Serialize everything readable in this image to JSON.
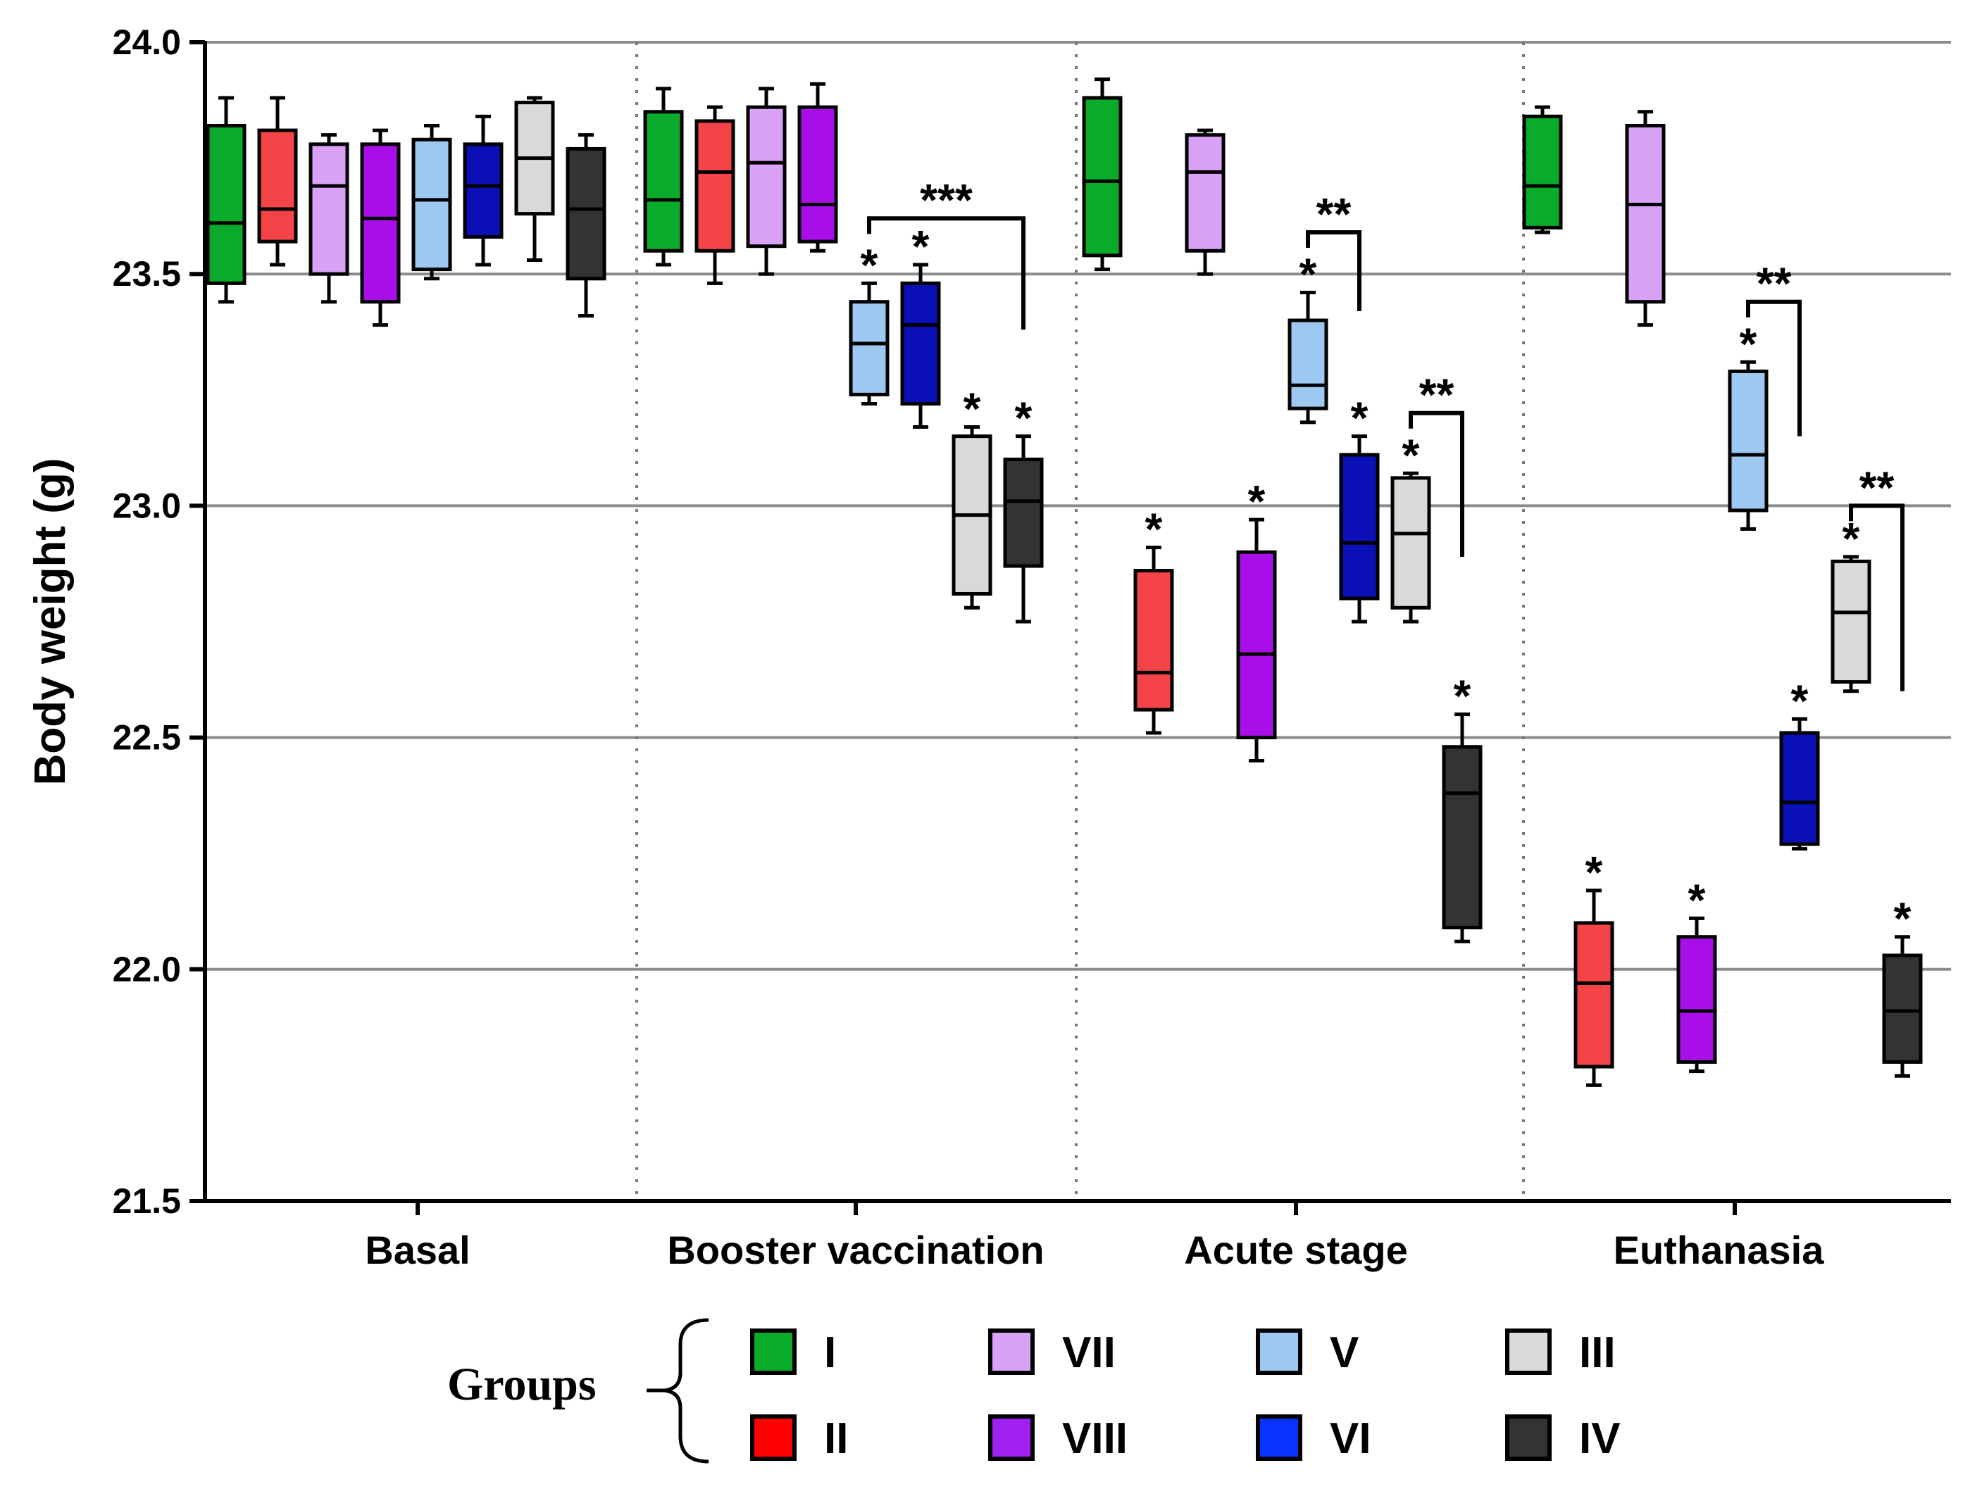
{
  "chart_data": {
    "type": "box",
    "ylabel": "Body weight (g)",
    "xlabel": "",
    "ylim": [
      21.5,
      24.0
    ],
    "yticks": [
      "24.0",
      "23.5",
      "23.0",
      "22.5",
      "22.0",
      "21.5"
    ],
    "grid": true,
    "categories": [
      "Basal",
      "Booster vaccination",
      "Acute stage",
      "Euthanasia"
    ],
    "colors": {
      "I": "#0aaa2a",
      "II": "#f44448",
      "VII": "#d9a2f7",
      "VIII": "#a80fe8",
      "V": "#9cc8f2",
      "VI": "#0a0fb6",
      "III": "#d9d9d9",
      "IV": "#333333"
    },
    "legend": {
      "title": "Groups",
      "items": [
        {
          "label": "I",
          "color": "#0aaa2a"
        },
        {
          "label": "VII",
          "color": "#d9a2f7"
        },
        {
          "label": "V",
          "color": "#9cc8f2"
        },
        {
          "label": "III",
          "color": "#d9d9d9"
        },
        {
          "label": "II",
          "color": "#ff0000"
        },
        {
          "label": "VIII",
          "color": "#a020f0"
        },
        {
          "label": "VI",
          "color": "#0a32ff"
        },
        {
          "label": "IV",
          "color": "#333333"
        }
      ]
    },
    "series": [
      {
        "category": "Basal",
        "group": "I",
        "min": 23.44,
        "q1": 23.48,
        "median": 23.61,
        "q3": 23.82,
        "max": 23.88,
        "star": ""
      },
      {
        "category": "Basal",
        "group": "II",
        "min": 23.52,
        "q1": 23.57,
        "median": 23.64,
        "q3": 23.81,
        "max": 23.88,
        "star": ""
      },
      {
        "category": "Basal",
        "group": "VII",
        "min": 23.44,
        "q1": 23.5,
        "median": 23.69,
        "q3": 23.78,
        "max": 23.8,
        "star": ""
      },
      {
        "category": "Basal",
        "group": "VIII",
        "min": 23.39,
        "q1": 23.44,
        "median": 23.62,
        "q3": 23.78,
        "max": 23.81,
        "star": ""
      },
      {
        "category": "Basal",
        "group": "V",
        "min": 23.49,
        "q1": 23.51,
        "median": 23.66,
        "q3": 23.79,
        "max": 23.82,
        "star": ""
      },
      {
        "category": "Basal",
        "group": "VI",
        "min": 23.52,
        "q1": 23.58,
        "median": 23.69,
        "q3": 23.78,
        "max": 23.84,
        "star": ""
      },
      {
        "category": "Basal",
        "group": "III",
        "min": 23.53,
        "q1": 23.63,
        "median": 23.75,
        "q3": 23.87,
        "max": 23.88,
        "star": ""
      },
      {
        "category": "Basal",
        "group": "IV",
        "min": 23.41,
        "q1": 23.49,
        "median": 23.64,
        "q3": 23.77,
        "max": 23.8,
        "star": ""
      },
      {
        "category": "Booster vaccination",
        "group": "I",
        "min": 23.52,
        "q1": 23.55,
        "median": 23.66,
        "q3": 23.85,
        "max": 23.9,
        "star": ""
      },
      {
        "category": "Booster vaccination",
        "group": "II",
        "min": 23.48,
        "q1": 23.55,
        "median": 23.72,
        "q3": 23.83,
        "max": 23.86,
        "star": ""
      },
      {
        "category": "Booster vaccination",
        "group": "VII",
        "min": 23.5,
        "q1": 23.56,
        "median": 23.74,
        "q3": 23.86,
        "max": 23.9,
        "star": ""
      },
      {
        "category": "Booster vaccination",
        "group": "VIII",
        "min": 23.55,
        "q1": 23.57,
        "median": 23.65,
        "q3": 23.86,
        "max": 23.91,
        "star": ""
      },
      {
        "category": "Booster vaccination",
        "group": "V",
        "min": 23.22,
        "q1": 23.24,
        "median": 23.35,
        "q3": 23.44,
        "max": 23.48,
        "star": "*"
      },
      {
        "category": "Booster vaccination",
        "group": "VI",
        "min": 23.17,
        "q1": 23.22,
        "median": 23.39,
        "q3": 23.48,
        "max": 23.52,
        "star": "*"
      },
      {
        "category": "Booster vaccination",
        "group": "III",
        "min": 22.78,
        "q1": 22.81,
        "median": 22.98,
        "q3": 23.15,
        "max": 23.17,
        "star": "*"
      },
      {
        "category": "Booster vaccination",
        "group": "IV",
        "min": 22.75,
        "q1": 22.87,
        "median": 23.01,
        "q3": 23.1,
        "max": 23.15,
        "star": "*"
      },
      {
        "category": "Acute stage",
        "group": "I",
        "min": 23.51,
        "q1": 23.54,
        "median": 23.7,
        "q3": 23.88,
        "max": 23.92,
        "star": ""
      },
      {
        "category": "Acute stage",
        "group": "II",
        "min": 22.51,
        "q1": 22.56,
        "median": 22.64,
        "q3": 22.86,
        "max": 22.91,
        "star": "*"
      },
      {
        "category": "Acute stage",
        "group": "VII",
        "min": 23.5,
        "q1": 23.55,
        "median": 23.72,
        "q3": 23.8,
        "max": 23.81,
        "star": ""
      },
      {
        "category": "Acute stage",
        "group": "VIII",
        "min": 22.45,
        "q1": 22.5,
        "median": 22.68,
        "q3": 22.9,
        "max": 22.97,
        "star": "*"
      },
      {
        "category": "Acute stage",
        "group": "V",
        "min": 23.18,
        "q1": 23.21,
        "median": 23.26,
        "q3": 23.4,
        "max": 23.46,
        "star": "*"
      },
      {
        "category": "Acute stage",
        "group": "VI",
        "min": 22.75,
        "q1": 22.8,
        "median": 22.92,
        "q3": 23.11,
        "max": 23.15,
        "star": "*"
      },
      {
        "category": "Acute stage",
        "group": "III",
        "min": 22.75,
        "q1": 22.78,
        "median": 22.94,
        "q3": 23.06,
        "max": 23.07,
        "star": "*"
      },
      {
        "category": "Acute stage",
        "group": "IV",
        "min": 22.06,
        "q1": 22.09,
        "median": 22.38,
        "q3": 22.48,
        "max": 22.55,
        "star": "*"
      },
      {
        "category": "Euthanasia",
        "group": "I",
        "min": 23.59,
        "q1": 23.6,
        "median": 23.69,
        "q3": 23.84,
        "max": 23.86,
        "star": ""
      },
      {
        "category": "Euthanasia",
        "group": "II",
        "min": 21.75,
        "q1": 21.79,
        "median": 21.97,
        "q3": 22.1,
        "max": 22.17,
        "star": "*"
      },
      {
        "category": "Euthanasia",
        "group": "VII",
        "min": 23.39,
        "q1": 23.44,
        "median": 23.65,
        "q3": 23.82,
        "max": 23.85,
        "star": ""
      },
      {
        "category": "Euthanasia",
        "group": "VIII",
        "min": 21.78,
        "q1": 21.8,
        "median": 21.91,
        "q3": 22.07,
        "max": 22.11,
        "star": "*"
      },
      {
        "category": "Euthanasia",
        "group": "V",
        "min": 22.95,
        "q1": 22.99,
        "median": 23.11,
        "q3": 23.29,
        "max": 23.31,
        "star": "*"
      },
      {
        "category": "Euthanasia",
        "group": "VI",
        "min": 22.26,
        "q1": 22.27,
        "median": 22.36,
        "q3": 22.51,
        "max": 22.54,
        "star": "*"
      },
      {
        "category": "Euthanasia",
        "group": "III",
        "min": 22.6,
        "q1": 22.62,
        "median": 22.77,
        "q3": 22.88,
        "max": 22.89,
        "star": "*"
      },
      {
        "category": "Euthanasia",
        "group": "IV",
        "min": 21.77,
        "q1": 21.8,
        "median": 21.91,
        "q3": 22.03,
        "max": 22.07,
        "star": "*"
      }
    ],
    "brackets": [
      {
        "category": "Booster vaccination",
        "from_group": "V",
        "to_group": "IV",
        "top": 23.62,
        "bottom": 23.38,
        "label": "***"
      },
      {
        "category": "Acute stage",
        "from_group": "V",
        "to_group": "VI",
        "top": 23.59,
        "bottom": 23.42,
        "label": "**"
      },
      {
        "category": "Acute stage",
        "from_group": "III",
        "to_group": "IV",
        "top": 23.2,
        "bottom": 22.89,
        "label": "**"
      },
      {
        "category": "Euthanasia",
        "from_group": "V",
        "to_group": "VI",
        "top": 23.44,
        "bottom": 23.15,
        "label": "**"
      },
      {
        "category": "Euthanasia",
        "from_group": "III",
        "to_group": "IV",
        "top": 23.0,
        "bottom": 22.6,
        "label": "**"
      }
    ]
  }
}
